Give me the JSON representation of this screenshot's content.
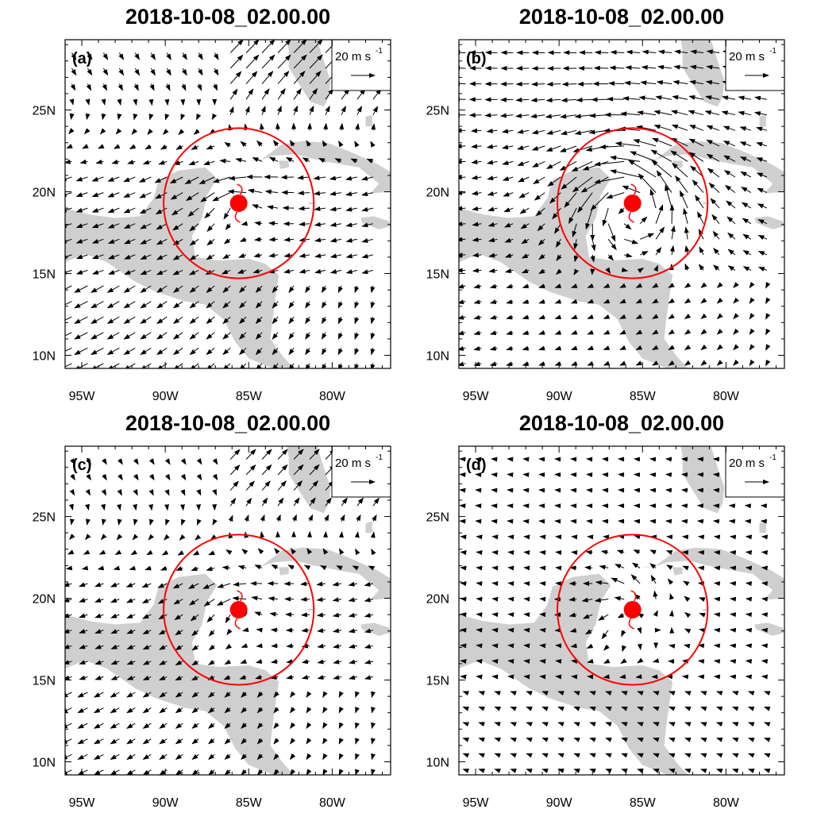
{
  "figure": {
    "colors": {
      "land": "#cfcfcf",
      "vector": "#000000",
      "storm": "#ff0000",
      "frame": "#000000"
    },
    "axes": {
      "lon_range": [
        -96,
        -76.5
      ],
      "lat_range": [
        9.2,
        29.3
      ],
      "lon_ticks": [
        {
          "value": -95,
          "label": "95W"
        },
        {
          "value": -90,
          "label": "90W"
        },
        {
          "value": -85,
          "label": "85W"
        },
        {
          "value": -80,
          "label": "80W"
        }
      ],
      "lat_ticks": [
        {
          "value": 10,
          "label": "10N"
        },
        {
          "value": 15,
          "label": "15N"
        },
        {
          "value": 20,
          "label": "20N"
        },
        {
          "value": 25,
          "label": "25N"
        }
      ]
    },
    "reference_vector": {
      "magnitude": 20,
      "label": "20 m s",
      "sup": "-1"
    },
    "storm_center": {
      "lon": -85.6,
      "lat": 19.3
    },
    "circle_radius_deg": 4.5,
    "panels": [
      {
        "id": "a",
        "label": "(a)",
        "title": "2018-10-08_02.00.00",
        "scale": 1.15,
        "mode": "a"
      },
      {
        "id": "b",
        "label": "(b)",
        "title": "2018-10-08_02.00.00",
        "scale": 0.95,
        "mode": "b"
      },
      {
        "id": "c",
        "label": "(c)",
        "title": "2018-10-08_02.00.00",
        "scale": 0.95,
        "mode": "c"
      },
      {
        "id": "d",
        "label": "(d)",
        "title": "2018-10-08_02.00.00",
        "scale": 0.85,
        "mode": "d"
      }
    ]
  }
}
